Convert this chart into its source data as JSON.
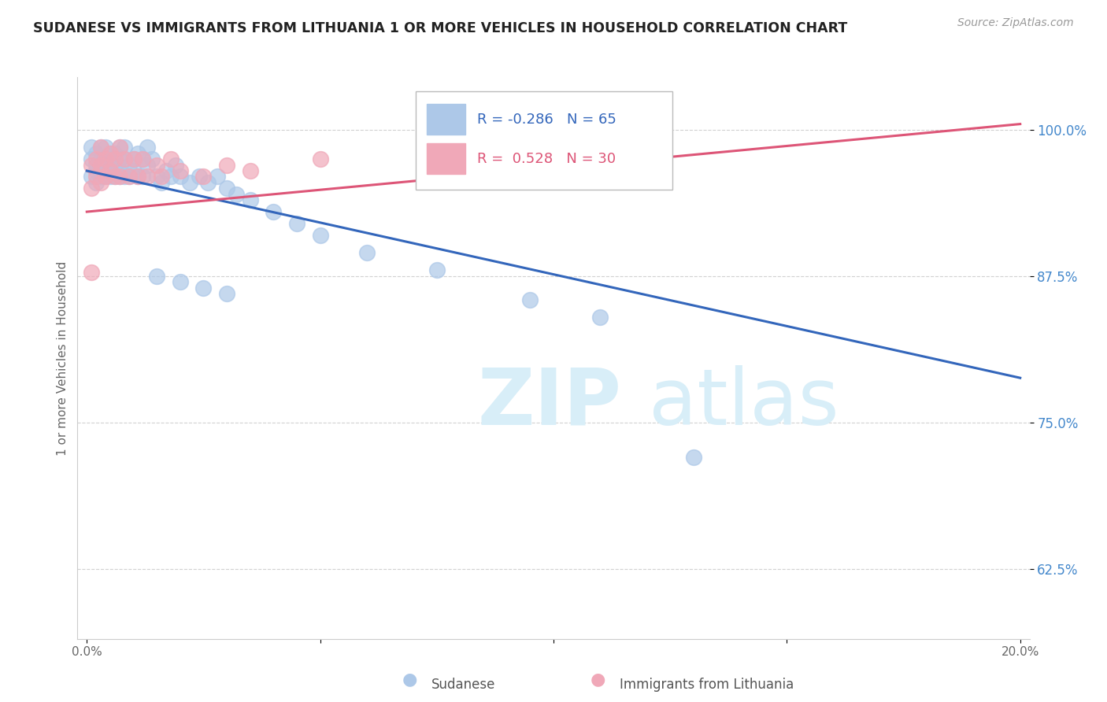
{
  "title": "SUDANESE VS IMMIGRANTS FROM LITHUANIA 1 OR MORE VEHICLES IN HOUSEHOLD CORRELATION CHART",
  "source": "Source: ZipAtlas.com",
  "ylabel": "1 or more Vehicles in Household",
  "xlim": [
    -0.002,
    0.202
  ],
  "ylim": [
    0.565,
    1.045
  ],
  "xticks": [
    0.0,
    0.05,
    0.1,
    0.15,
    0.2
  ],
  "xtick_labels": [
    "0.0%",
    "",
    "",
    "",
    "20.0%"
  ],
  "yticks": [
    0.625,
    0.75,
    0.875,
    1.0
  ],
  "ytick_labels": [
    "62.5%",
    "75.0%",
    "87.5%",
    "100.0%"
  ],
  "blue_R": -0.286,
  "blue_N": 65,
  "pink_R": 0.528,
  "pink_N": 30,
  "blue_color": "#adc8e8",
  "pink_color": "#f0a8b8",
  "blue_edge_color": "#adc8e8",
  "pink_edge_color": "#f0a8b8",
  "blue_line_color": "#3366bb",
  "pink_line_color": "#dd5577",
  "background_color": "#ffffff",
  "grid_color": "#cccccc",
  "watermark_zip": "ZIP",
  "watermark_atlas": "atlas",
  "watermark_color": "#d8eef8",
  "legend_blue_label": "Sudanese",
  "legend_pink_label": "Immigrants from Lithuania",
  "ytick_color": "#4488cc",
  "xtick_color": "#666666",
  "ylabel_color": "#666666",
  "blue_trendline_x": [
    0.0,
    0.2
  ],
  "blue_trendline_y": [
    0.965,
    0.788
  ],
  "pink_trendline_x": [
    0.0,
    0.2
  ],
  "pink_trendline_y": [
    0.93,
    1.005
  ],
  "blue_scatter_x": [
    0.001,
    0.001,
    0.001,
    0.002,
    0.002,
    0.002,
    0.002,
    0.003,
    0.003,
    0.003,
    0.003,
    0.004,
    0.004,
    0.004,
    0.004,
    0.005,
    0.005,
    0.005,
    0.005,
    0.006,
    0.006,
    0.006,
    0.007,
    0.007,
    0.007,
    0.007,
    0.008,
    0.008,
    0.008,
    0.009,
    0.009,
    0.01,
    0.01,
    0.011,
    0.011,
    0.012,
    0.012,
    0.013,
    0.013,
    0.014,
    0.015,
    0.016,
    0.017,
    0.018,
    0.019,
    0.02,
    0.022,
    0.024,
    0.026,
    0.028,
    0.03,
    0.032,
    0.035,
    0.04,
    0.045,
    0.05,
    0.06,
    0.075,
    0.095,
    0.11,
    0.015,
    0.02,
    0.025,
    0.03,
    0.13
  ],
  "blue_scatter_y": [
    0.975,
    0.96,
    0.985,
    0.97,
    0.955,
    0.98,
    0.965,
    0.975,
    0.96,
    0.985,
    0.97,
    0.975,
    0.96,
    0.985,
    0.965,
    0.98,
    0.96,
    0.975,
    0.965,
    0.98,
    0.96,
    0.97,
    0.985,
    0.965,
    0.975,
    0.96,
    0.975,
    0.96,
    0.985,
    0.97,
    0.96,
    0.975,
    0.965,
    0.96,
    0.98,
    0.975,
    0.96,
    0.97,
    0.985,
    0.975,
    0.96,
    0.955,
    0.965,
    0.96,
    0.97,
    0.96,
    0.955,
    0.96,
    0.955,
    0.96,
    0.95,
    0.945,
    0.94,
    0.93,
    0.92,
    0.91,
    0.895,
    0.88,
    0.855,
    0.84,
    0.875,
    0.87,
    0.865,
    0.86,
    0.72
  ],
  "pink_scatter_x": [
    0.001,
    0.001,
    0.002,
    0.002,
    0.003,
    0.003,
    0.003,
    0.004,
    0.004,
    0.005,
    0.005,
    0.006,
    0.006,
    0.007,
    0.007,
    0.008,
    0.009,
    0.01,
    0.011,
    0.012,
    0.013,
    0.015,
    0.016,
    0.018,
    0.02,
    0.025,
    0.03,
    0.035,
    0.05,
    0.001
  ],
  "pink_scatter_y": [
    0.95,
    0.97,
    0.96,
    0.975,
    0.955,
    0.97,
    0.985,
    0.96,
    0.975,
    0.965,
    0.98,
    0.96,
    0.975,
    0.96,
    0.985,
    0.975,
    0.96,
    0.975,
    0.96,
    0.975,
    0.96,
    0.97,
    0.96,
    0.975,
    0.965,
    0.96,
    0.97,
    0.965,
    0.975,
    0.878
  ]
}
